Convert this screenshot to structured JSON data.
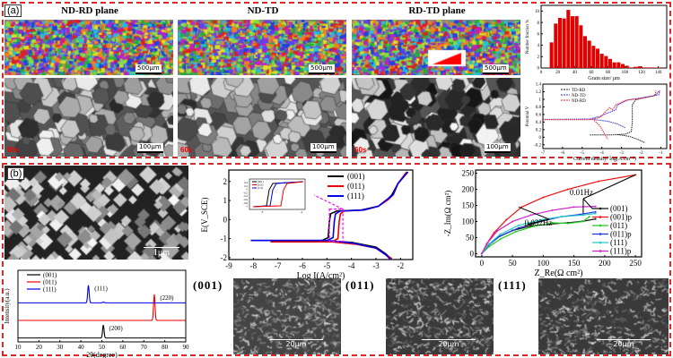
{
  "panel_a": {
    "label": "(a)",
    "maps": [
      {
        "title": "ND-RD plane",
        "map_scale": "500μm",
        "micro_scale": "100μm",
        "time": "60s"
      },
      {
        "title": "ND-TD",
        "map_scale": "500μm",
        "micro_scale": "100μm",
        "time": "60s"
      },
      {
        "title": "RD-TD plane",
        "map_scale": "500μm",
        "micro_scale": "100μm",
        "time": "60s"
      }
    ]
  },
  "panel_b": {
    "label": "(b)",
    "sem_scale": "1μm",
    "micrographs": [
      {
        "label": "(001)",
        "scale": "20μm"
      },
      {
        "label": "(011)",
        "scale": "20μm"
      },
      {
        "label": "(111)",
        "scale": "20μm"
      }
    ]
  },
  "chart_data": [
    {
      "id": "histogram",
      "type": "bar",
      "xlabel": "Grain size/ μm",
      "ylabel": "Number fraction %",
      "xlim": [
        0,
        150
      ],
      "ylim": [
        0,
        11
      ],
      "xticks": [
        0,
        20,
        40,
        60,
        80,
        100,
        120,
        140
      ],
      "yticks": [
        0,
        2,
        4,
        6,
        8,
        10
      ],
      "color": "#e00000",
      "bin_width": 5,
      "x": [
        12.5,
        17.5,
        22.5,
        27.5,
        32.5,
        37.5,
        42.5,
        47.5,
        52.5,
        57.5,
        62.5,
        67.5,
        72.5,
        77.5,
        82.5,
        87.5,
        92.5,
        97.5,
        102.5,
        107.5,
        112.5,
        117.5,
        122.5,
        127.5,
        132.5,
        137.5,
        142.5
      ],
      "values": [
        4.5,
        7.8,
        8.8,
        8.7,
        10.2,
        9.1,
        9.1,
        7.5,
        5.6,
        4.8,
        3.9,
        3.4,
        2.5,
        2.1,
        1.6,
        1.0,
        1.0,
        0.7,
        0.4,
        0.1,
        0.2,
        0.3,
        0.1,
        0.1,
        0.1,
        0.05,
        0.1
      ]
    },
    {
      "id": "polarization_a",
      "type": "line",
      "xlabel": "Current density/ log(A.cm⁻²)",
      "ylabel": "Potential V",
      "xlim": [
        -7,
        -0.7
      ],
      "ylim": [
        -0.3,
        1.4
      ],
      "xticks": [
        -7,
        -6,
        -5,
        -4,
        -3,
        -2,
        -1
      ],
      "yticks": [
        -0.2,
        0.0,
        0.2,
        0.4,
        0.6,
        0.8,
        1.0,
        1.2,
        1.4
      ],
      "legend": "top-left",
      "series": [
        {
          "name": "TD-RD",
          "color": "#222222",
          "dash": true,
          "branches": [
            [
              [
                -4.6,
                0.06
              ],
              [
                -3.5,
                0.06
              ],
              [
                -2.8,
                0.08
              ],
              [
                -2.5,
                0.15
              ],
              [
                -2.45,
                0.4
              ],
              [
                -2.45,
                0.85
              ],
              [
                -2.3,
                0.98
              ],
              [
                -1.8,
                1.05
              ],
              [
                -1.3,
                1.1
              ],
              [
                -1.05,
                1.23
              ]
            ],
            [
              [
                -3.2,
                0.07
              ],
              [
                -2.6,
                0.02
              ],
              [
                -2.2,
                -0.05
              ],
              [
                -1.8,
                -0.15
              ]
            ]
          ]
        },
        {
          "name": "ND-TD",
          "color": "#3333ee",
          "dash": true,
          "branches": [
            [
              [
                -7,
                0.47
              ],
              [
                -4.6,
                0.48
              ],
              [
                -4.1,
                0.55
              ],
              [
                -3.5,
                0.68
              ],
              [
                -3.3,
                0.72
              ],
              [
                -3.2,
                0.85
              ],
              [
                -2.7,
                0.98
              ],
              [
                -1.6,
                1.07
              ],
              [
                -1.1,
                1.12
              ],
              [
                -1.05,
                1.22
              ]
            ],
            [
              [
                -4.6,
                0.48
              ],
              [
                -3.7,
                0.42
              ],
              [
                -3.2,
                0.35
              ],
              [
                -2.8,
                0.25
              ]
            ]
          ]
        },
        {
          "name": "ND-RD",
          "color": "#ee2222",
          "dash": true,
          "branches": [
            [
              [
                -7,
                0.46
              ],
              [
                -4.6,
                0.46
              ],
              [
                -4.1,
                0.52
              ],
              [
                -3.6,
                0.78
              ],
              [
                -3.45,
                0.72
              ],
              [
                -3.3,
                0.85
              ],
              [
                -2.8,
                0.97
              ],
              [
                -1.8,
                1.04
              ],
              [
                -1.3,
                1.1
              ],
              [
                -1.25,
                1.23
              ]
            ],
            [
              [
                -4.4,
                0.45
              ],
              [
                -4.1,
                0.3
              ],
              [
                -3.9,
                0.12
              ],
              [
                -3.7,
                -0.05
              ]
            ]
          ]
        }
      ]
    },
    {
      "id": "polarization_b",
      "type": "line",
      "xlabel": "Log I(A/cm²)",
      "ylabel": "E(V_SCE)",
      "xlim": [
        -9,
        -1.5
      ],
      "ylim": [
        -2.1,
        2.6
      ],
      "xticks": [
        -9,
        -8,
        -7,
        -6,
        -5,
        -4,
        -3,
        -2
      ],
      "yticks": [
        -2,
        -1,
        0,
        1,
        2
      ],
      "legend": "top-right",
      "series": [
        {
          "name": "(001)",
          "color": "#000000",
          "branches": [
            [
              [
                -8.1,
                -1.1
              ],
              [
                -5.2,
                -1.1
              ],
              [
                -4.0,
                -1.2
              ],
              [
                -3.0,
                -1.45
              ],
              [
                -2.6,
                -1.8
              ],
              [
                -2.4,
                -2.05
              ]
            ],
            [
              [
                -5.2,
                -1.1
              ],
              [
                -4.95,
                -0.95
              ],
              [
                -4.9,
                -0.1
              ],
              [
                -4.85,
                0.3
              ],
              [
                -4.6,
                0.45
              ],
              [
                -3.6,
                0.5
              ],
              [
                -2.9,
                0.7
              ],
              [
                -2.5,
                1.1
              ],
              [
                -2.35,
                1.3
              ],
              [
                -2.1,
                1.9
              ],
              [
                -1.7,
                2.5
              ]
            ]
          ]
        },
        {
          "name": "(011)",
          "color": "#ee0000",
          "branches": [
            [
              [
                -7.3,
                -1.17
              ],
              [
                -4.8,
                -1.17
              ],
              [
                -3.8,
                -1.3
              ],
              [
                -3.0,
                -1.5
              ],
              [
                -2.6,
                -1.85
              ],
              [
                -2.35,
                -2.05
              ]
            ],
            [
              [
                -4.8,
                -1.17
              ],
              [
                -4.55,
                -1.0
              ],
              [
                -4.5,
                -0.1
              ],
              [
                -4.45,
                0.3
              ],
              [
                -4.3,
                0.45
              ],
              [
                -3.5,
                0.5
              ],
              [
                -2.9,
                0.7
              ],
              [
                -2.5,
                1.05
              ],
              [
                -2.3,
                1.3
              ],
              [
                -2.1,
                1.9
              ],
              [
                -1.75,
                2.5
              ]
            ]
          ]
        },
        {
          "name": "(111)",
          "color": "#0000ee",
          "branches": [
            [
              [
                -8.1,
                -1.1
              ],
              [
                -5.0,
                -1.1
              ],
              [
                -4.0,
                -1.22
              ],
              [
                -3.0,
                -1.5
              ],
              [
                -2.6,
                -1.85
              ],
              [
                -2.4,
                -2.1
              ]
            ],
            [
              [
                -5.0,
                -1.1
              ],
              [
                -4.75,
                -0.95
              ],
              [
                -4.7,
                -0.1
              ],
              [
                -4.65,
                0.3
              ],
              [
                -4.45,
                0.45
              ],
              [
                -3.5,
                0.5
              ],
              [
                -2.9,
                0.7
              ],
              [
                -2.5,
                1.1
              ],
              [
                -2.3,
                1.3
              ],
              [
                -2.1,
                1.9
              ],
              [
                -1.7,
                2.5
              ]
            ]
          ]
        }
      ],
      "annotation_inset": {
        "yticks": [
          0.4,
          0.2,
          0.0,
          -0.2,
          -0.4,
          -0.6,
          -0.8,
          -1.0
        ],
        "xticks": [
          -5,
          -4
        ],
        "legend": [
          "(001)",
          "(011)",
          "(111)"
        ]
      }
    },
    {
      "id": "nyquist",
      "type": "line",
      "xlabel": "Z_Re(Ω cm²)",
      "ylabel": "-Z_Im(Ω cm²)",
      "xlim": [
        -10,
        260
      ],
      "ylim": [
        -10,
        260
      ],
      "xticks": [
        0,
        50,
        100,
        150,
        200,
        250
      ],
      "yticks": [
        0,
        50,
        100,
        150,
        200,
        250
      ],
      "legend": "right",
      "annotations": [
        "0.01Hz",
        "0.032Hz"
      ],
      "series": [
        {
          "name": "(001)",
          "color": "#111111",
          "points": [
            [
              0,
              0
            ],
            [
              10,
              25
            ],
            [
              25,
              50
            ],
            [
              50,
              72
            ],
            [
              80,
              86
            ],
            [
              110,
              92
            ],
            [
              140,
              96
            ],
            [
              165,
              101
            ],
            [
              185,
              108
            ]
          ]
        },
        {
          "name": "(001)p",
          "color": "#ee1111",
          "points": [
            [
              0,
              0
            ],
            [
              8,
              30
            ],
            [
              20,
              65
            ],
            [
              40,
              105
            ],
            [
              65,
              145
            ],
            [
              100,
              175
            ],
            [
              140,
              200
            ],
            [
              190,
              225
            ],
            [
              250,
              245
            ]
          ]
        },
        {
          "name": "(011)",
          "color": "#22cc22",
          "points": [
            [
              0,
              0
            ],
            [
              12,
              22
            ],
            [
              30,
              45
            ],
            [
              55,
              68
            ],
            [
              85,
              85
            ],
            [
              115,
              96
            ],
            [
              140,
              94
            ],
            [
              165,
              100
            ],
            [
              175,
              115
            ]
          ]
        },
        {
          "name": "(011)p",
          "color": "#2233dd",
          "points": [
            [
              0,
              0
            ],
            [
              12,
              28
            ],
            [
              30,
              55
            ],
            [
              60,
              80
            ],
            [
              95,
              100
            ],
            [
              130,
              115
            ],
            [
              160,
              122
            ],
            [
              185,
              130
            ]
          ]
        },
        {
          "name": "(111)",
          "color": "#22cccc",
          "points": [
            [
              0,
              0
            ],
            [
              12,
              30
            ],
            [
              30,
              60
            ],
            [
              60,
              88
            ],
            [
              95,
              105
            ],
            [
              130,
              115
            ],
            [
              165,
              120
            ],
            [
              185,
              125
            ]
          ]
        },
        {
          "name": "(111)p",
          "color": "#cc22cc",
          "points": [
            [
              0,
              0
            ],
            [
              10,
              35
            ],
            [
              25,
              70
            ],
            [
              50,
              100
            ],
            [
              80,
              120
            ],
            [
              115,
              135
            ],
            [
              150,
              145
            ],
            [
              185,
              147
            ]
          ]
        }
      ]
    },
    {
      "id": "xrd",
      "type": "line",
      "xlabel": "2θ(degree)",
      "ylabel": "Intensity(a.u.)",
      "xlim": [
        10,
        90
      ],
      "xticks": [
        10,
        20,
        30,
        40,
        50,
        60,
        70,
        80,
        90
      ],
      "legend": "top-left",
      "series": [
        {
          "name": "(001)",
          "color": "#000000",
          "offset": 0,
          "peaks": [
            [
              50.7,
              1.0,
              "(200)"
            ]
          ]
        },
        {
          "name": "(011)",
          "color": "#ee0000",
          "offset": 1,
          "peaks": [
            [
              75.0,
              2.0,
              "(220)"
            ]
          ]
        },
        {
          "name": "(111)",
          "color": "#0000ee",
          "offset": 2,
          "peaks": [
            [
              43.6,
              1.35,
              "(111)"
            ],
            [
              50.8,
              0.06,
              ""
            ]
          ]
        }
      ]
    }
  ]
}
